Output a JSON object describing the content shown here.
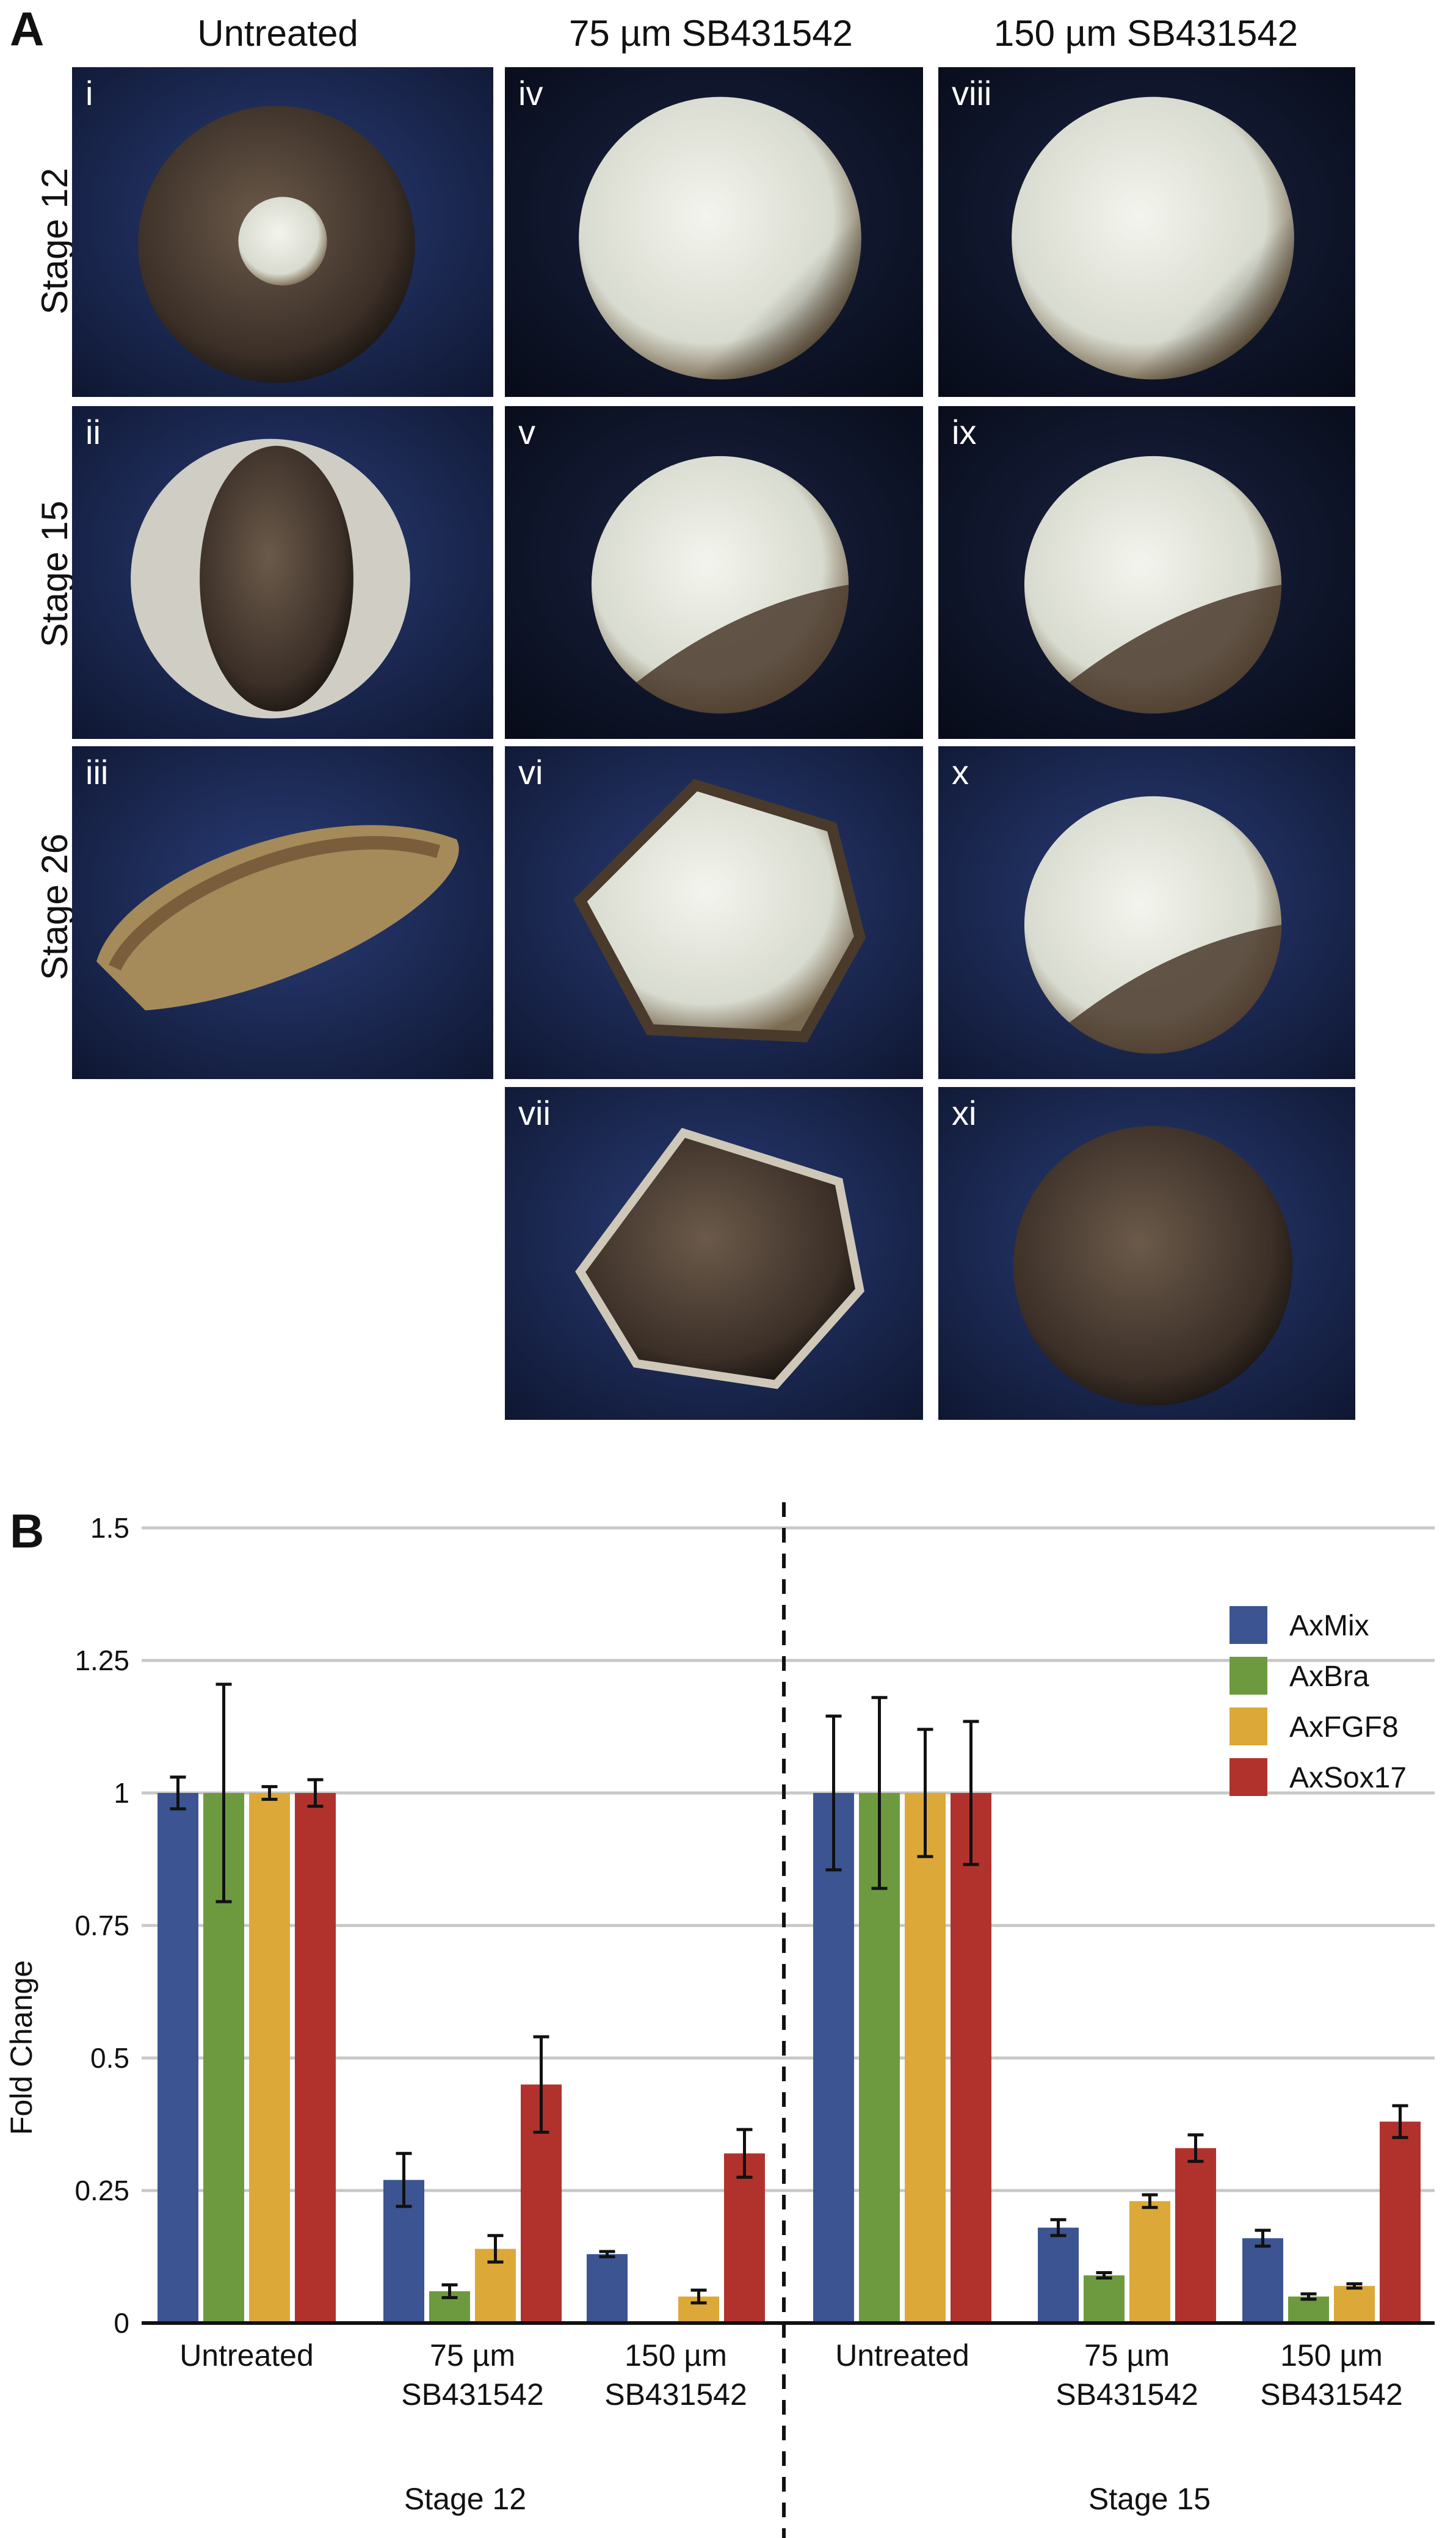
{
  "panel_a": {
    "letter": "A",
    "columns": [
      "Untreated",
      "75 µm SB431542",
      "150 µm SB431542"
    ],
    "rows": [
      "Stage 12",
      "Stage 15",
      "Stage 26"
    ],
    "tiles": [
      {
        "label": "i",
        "col": 0,
        "row": 0,
        "kind": "embryo-blastopore"
      },
      {
        "label": "ii",
        "col": 0,
        "row": 1,
        "kind": "embryo-neural"
      },
      {
        "label": "iii",
        "col": 0,
        "row": 2,
        "kind": "embryo-tailbud"
      },
      {
        "label": "iv",
        "col": 1,
        "row": 0,
        "kind": "embryo-pale"
      },
      {
        "label": "v",
        "col": 1,
        "row": 1,
        "kind": "embryo-pale-dark"
      },
      {
        "label": "vi",
        "col": 1,
        "row": 2,
        "kind": "embryo-irregular-pale"
      },
      {
        "label": "vii",
        "col": 1,
        "row": 3,
        "kind": "embryo-irregular-dark"
      },
      {
        "label": "viii",
        "col": 2,
        "row": 0,
        "kind": "embryo-pale"
      },
      {
        "label": "ix",
        "col": 2,
        "row": 1,
        "kind": "embryo-pale-dark"
      },
      {
        "label": "x",
        "col": 2,
        "row": 2,
        "kind": "embryo-pale-dark"
      },
      {
        "label": "xi",
        "col": 2,
        "row": 3,
        "kind": "embryo-dark"
      }
    ]
  },
  "panel_b": {
    "letter": "B"
  },
  "chart_data": {
    "type": "bar",
    "ylabel": "Fold Change",
    "ylim": [
      0,
      1.5
    ],
    "yticks": [
      {
        "value": 0,
        "label": "0"
      },
      {
        "value": 0.25,
        "label": "0.25"
      },
      {
        "value": 0.5,
        "label": "0.5"
      },
      {
        "value": 0.75,
        "label": "0.75"
      },
      {
        "value": 1,
        "label": "1"
      },
      {
        "value": 1.25,
        "label": "1.25"
      },
      {
        "value": 1.5,
        "label": "1.5"
      }
    ],
    "grid": true,
    "legend_position": "top-right",
    "groups": [
      {
        "name": "Stage 12",
        "categories": [
          [
            "Untreated"
          ],
          [
            "75 µm",
            "SB431542"
          ],
          [
            "150 µm",
            "SB431542"
          ]
        ]
      },
      {
        "name": "Stage 15",
        "categories": [
          [
            "Untreated"
          ],
          [
            "75 µm",
            "SB431542"
          ],
          [
            "150 µm",
            "SB431542"
          ]
        ]
      }
    ],
    "series": [
      {
        "name": "AxMix",
        "color": "#3d5492",
        "values": [
          1.0,
          0.27,
          0.13,
          1.0,
          0.18,
          0.16
        ],
        "errors": [
          0.03,
          0.05,
          0.005,
          0.145,
          0.015,
          0.015
        ]
      },
      {
        "name": "AxBra",
        "color": "#6e9a3f",
        "values": [
          1.0,
          0.06,
          0.0,
          1.0,
          0.09,
          0.05
        ],
        "errors": [
          0.205,
          0.012,
          0.0,
          0.18,
          0.005,
          0.005
        ]
      },
      {
        "name": "AxFGF8",
        "color": "#dca938",
        "values": [
          1.0,
          0.14,
          0.05,
          1.0,
          0.23,
          0.07
        ],
        "errors": [
          0.012,
          0.025,
          0.012,
          0.12,
          0.012,
          0.004
        ]
      },
      {
        "name": "AxSox17",
        "color": "#b1322d",
        "values": [
          1.0,
          0.45,
          0.32,
          1.0,
          0.33,
          0.38
        ],
        "errors": [
          0.025,
          0.09,
          0.045,
          0.135,
          0.025,
          0.03
        ]
      }
    ]
  }
}
